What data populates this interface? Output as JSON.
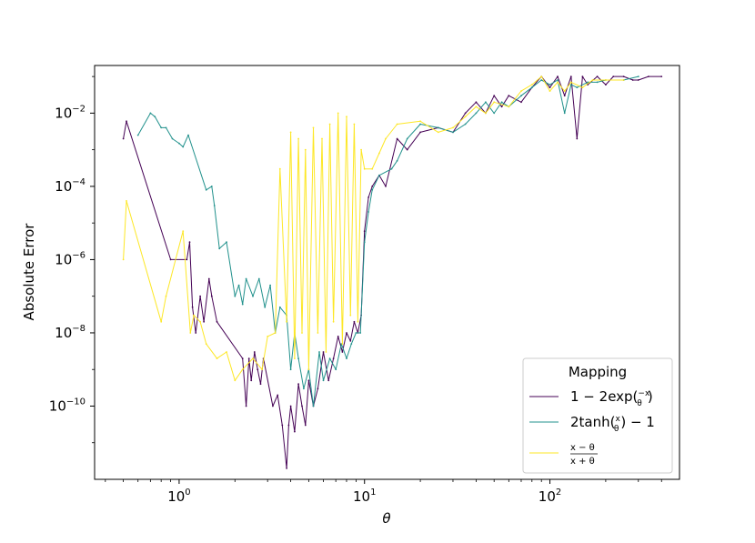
{
  "chart_data": {
    "type": "line",
    "xlabel": "θ",
    "ylabel": "Absolute Error",
    "xscale": "log",
    "yscale": "log",
    "xlim": [
      0.35,
      500
    ],
    "ylim": [
      1e-12,
      0.2
    ],
    "grid": false,
    "x_ticks": [
      {
        "value": 1,
        "mantissa": "10",
        "exponent": "0"
      },
      {
        "value": 10,
        "mantissa": "10",
        "exponent": "1"
      },
      {
        "value": 100,
        "mantissa": "10",
        "exponent": "2"
      }
    ],
    "y_ticks": [
      {
        "value": 1e-10,
        "mantissa": "10",
        "exponent": "−10"
      },
      {
        "value": 1e-08,
        "mantissa": "10",
        "exponent": "−8"
      },
      {
        "value": 1e-06,
        "mantissa": "10",
        "exponent": "−6"
      },
      {
        "value": 0.0001,
        "mantissa": "10",
        "exponent": "−4"
      },
      {
        "value": 0.01,
        "mantissa": "10",
        "exponent": "−2"
      }
    ],
    "legend": {
      "title": "Mapping",
      "location": "lower right",
      "entries": [
        {
          "series": 0,
          "label": "1 − 2exp(−x/θ)"
        },
        {
          "series": 1,
          "label": "2tanh(x/θ) − 1"
        },
        {
          "series": 2,
          "label": "(x − θ)/(x + θ)"
        }
      ]
    },
    "series": [
      {
        "label": "1 − 2exp(−x/θ)",
        "color": "#440154",
        "x": [
          0.5,
          0.52,
          0.9,
          1.1,
          1.14,
          1.18,
          1.23,
          1.3,
          1.36,
          1.45,
          1.5,
          1.6,
          2.2,
          2.3,
          2.38,
          2.45,
          2.55,
          2.65,
          2.75,
          2.85,
          3.2,
          3.4,
          3.6,
          3.8,
          3.9,
          4.0,
          4.2,
          4.4,
          4.6,
          4.8,
          5.0,
          5.3,
          5.6,
          6.0,
          6.4,
          6.8,
          7.2,
          7.6,
          8.0,
          8.4,
          8.8,
          9.2,
          9.6,
          10.0,
          10.5,
          11.0,
          12.0,
          13.0,
          15.0,
          17.0,
          20.0,
          25.0,
          30.0,
          35.0,
          40.0,
          45.0,
          50.0,
          55.0,
          60.0,
          70.0,
          80.0,
          90.0,
          100.0,
          110.0,
          120.0,
          130.0,
          140.0,
          150.0,
          160.0,
          180.0,
          200.0,
          220.0,
          250.0,
          280.0,
          300.0,
          340.0,
          400.0
        ],
        "y": [
          0.002,
          0.006,
          1e-06,
          1e-06,
          3e-06,
          5e-08,
          1e-08,
          1e-07,
          2e-08,
          3e-07,
          1e-07,
          2e-08,
          2e-09,
          1e-10,
          2e-09,
          5e-10,
          3e-09,
          1e-09,
          4e-10,
          2e-09,
          1e-10,
          2e-10,
          3e-11,
          2e-12,
          3e-11,
          1e-10,
          2e-11,
          4e-10,
          1e-10,
          3e-11,
          5e-10,
          1e-10,
          3e-10,
          3e-09,
          5e-10,
          2e-09,
          8e-09,
          3e-09,
          1e-08,
          6e-09,
          2e-08,
          1e-08,
          3e-08,
          6e-06,
          5e-05,
          0.0001,
          0.0002,
          0.0001,
          0.002,
          0.001,
          0.003,
          0.004,
          0.003,
          0.01,
          0.02,
          0.01,
          0.03,
          0.015,
          0.03,
          0.02,
          0.05,
          0.1,
          0.05,
          0.1,
          0.03,
          0.1,
          0.002,
          0.1,
          0.06,
          0.1,
          0.06,
          0.1,
          0.1,
          0.08,
          0.08,
          0.1,
          0.1
        ]
      },
      {
        "label": "2tanh(x/θ) − 1",
        "color": "#21918c",
        "x": [
          0.6,
          0.7,
          0.74,
          0.8,
          0.85,
          0.92,
          1.0,
          1.05,
          1.12,
          1.4,
          1.5,
          1.55,
          1.65,
          1.8,
          2.0,
          2.1,
          2.2,
          2.3,
          2.5,
          2.7,
          2.9,
          3.1,
          3.3,
          3.5,
          3.8,
          4.0,
          4.2,
          4.4,
          4.7,
          5.0,
          5.3,
          5.7,
          6.0,
          6.5,
          7.0,
          7.5,
          8.0,
          8.5,
          9.0,
          9.5,
          10.0,
          10.5,
          11.0,
          12.0,
          14.0,
          15.0,
          17.0,
          20.0,
          25.0,
          30.0,
          35.0,
          40.0,
          45.0,
          50.0,
          55.0,
          60.0,
          70.0,
          80.0,
          90.0,
          100.0,
          110.0,
          120.0,
          130.0,
          140.0,
          160.0,
          180.0,
          200.0,
          250.0,
          300.0
        ],
        "y": [
          0.0025,
          0.01,
          0.008,
          0.004,
          0.004,
          0.002,
          0.0015,
          0.0012,
          0.0025,
          8e-05,
          0.0001,
          3e-05,
          2e-06,
          3e-06,
          1e-07,
          2e-07,
          6e-08,
          3e-07,
          1e-07,
          3e-07,
          5e-08,
          2e-07,
          1e-08,
          5e-08,
          3e-08,
          1e-09,
          1e-08,
          2e-09,
          3e-10,
          1e-09,
          1e-10,
          3e-09,
          5e-10,
          2e-09,
          1e-09,
          5e-09,
          2e-09,
          5e-09,
          1e-08,
          1e-08,
          3e-06,
          2e-05,
          8e-05,
          0.0002,
          0.0003,
          0.0005,
          0.002,
          0.005,
          0.004,
          0.003,
          0.005,
          0.01,
          0.02,
          0.01,
          0.02,
          0.015,
          0.03,
          0.05,
          0.08,
          0.06,
          0.08,
          0.01,
          0.06,
          0.05,
          0.07,
          0.07,
          0.08,
          0.08,
          0.1
        ]
      },
      {
        "label": "(x − θ)/(x + θ)",
        "color": "#fde725",
        "x": [
          0.5,
          0.52,
          0.8,
          0.85,
          1.05,
          1.15,
          1.2,
          1.3,
          1.4,
          1.6,
          1.8,
          2.0,
          2.2,
          2.5,
          2.8,
          3.0,
          3.3,
          3.5,
          3.8,
          4.0,
          4.2,
          4.4,
          4.6,
          4.8,
          5.0,
          5.3,
          5.6,
          5.9,
          6.2,
          6.5,
          6.8,
          7.2,
          7.6,
          8.0,
          8.4,
          8.8,
          9.2,
          9.6,
          10.0,
          11.0,
          12.0,
          13.0,
          15.0,
          20.0,
          25.0,
          30.0,
          35.0,
          40.0,
          45.0,
          50.0,
          60.0,
          70.0,
          80.0,
          90.0,
          100.0,
          110.0,
          120.0,
          130.0,
          150.0,
          170.0,
          200.0,
          250.0
        ],
        "y": [
          1e-06,
          4e-05,
          2e-08,
          1e-07,
          6e-06,
          1e-08,
          3e-08,
          2e-08,
          5e-09,
          2e-09,
          3e-09,
          5e-10,
          1e-09,
          2e-09,
          1e-09,
          8e-09,
          1e-08,
          0.0003,
          2e-08,
          0.003,
          2e-09,
          0.002,
          1e-08,
          0.001,
          1e-09,
          0.004,
          1e-08,
          0.002,
          3e-09,
          0.005,
          2e-08,
          0.01,
          5e-09,
          0.008,
          3e-08,
          0.005,
          2e-08,
          0.001,
          0.0003,
          0.0003,
          0.0008,
          0.002,
          0.005,
          0.006,
          0.003,
          0.004,
          0.008,
          0.015,
          0.01,
          0.02,
          0.015,
          0.04,
          0.06,
          0.1,
          0.04,
          0.07,
          0.04,
          0.07,
          0.05,
          0.08,
          0.08,
          0.08
        ]
      }
    ]
  }
}
